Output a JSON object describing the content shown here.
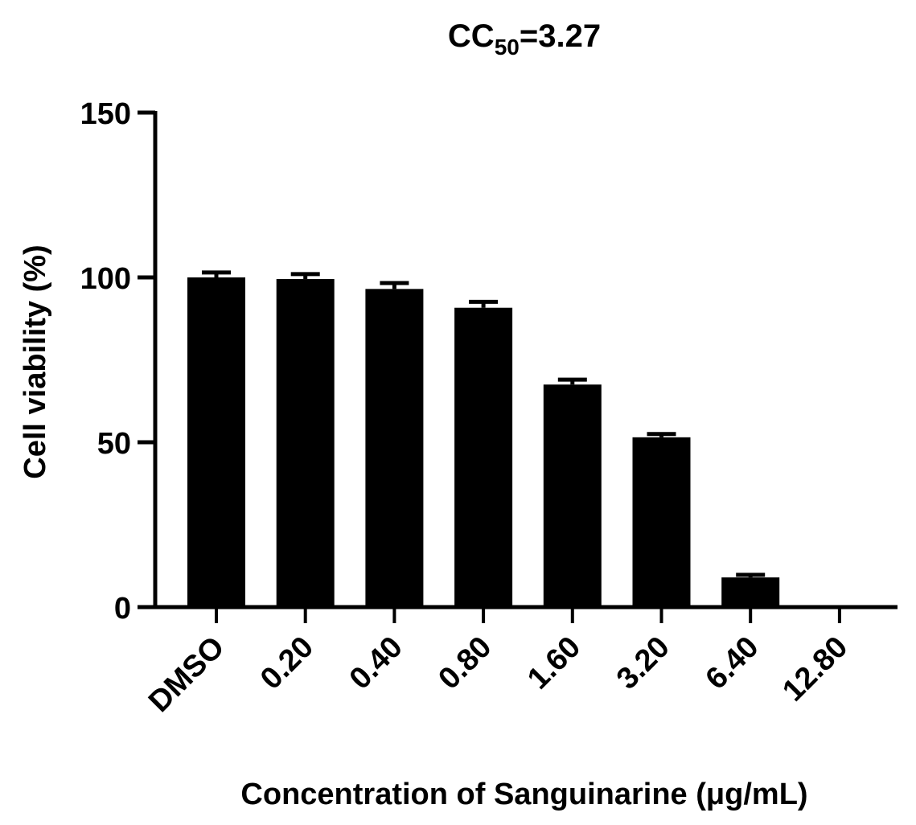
{
  "chart_data": {
    "type": "bar",
    "title": {
      "prefix": "CC",
      "subscript": "50",
      "suffix": "=3.27"
    },
    "xlabel": "Concentration of Sanguinarine (μg/mL)",
    "ylabel": "Cell viability (%)",
    "categories": [
      "DMSO",
      "0.20",
      "0.40",
      "0.80",
      "1.60",
      "3.20",
      "6.40",
      "12.80"
    ],
    "values": [
      100,
      99.5,
      96.5,
      90.8,
      67.5,
      51.5,
      9,
      0
    ],
    "errors": [
      1.5,
      1.5,
      1.8,
      1.8,
      1.5,
      1.0,
      0.8,
      0
    ],
    "yticks": [
      0,
      50,
      100,
      150
    ],
    "ylim": [
      0,
      150
    ],
    "bar_color": "#000000",
    "grid": false,
    "legend": "none"
  }
}
